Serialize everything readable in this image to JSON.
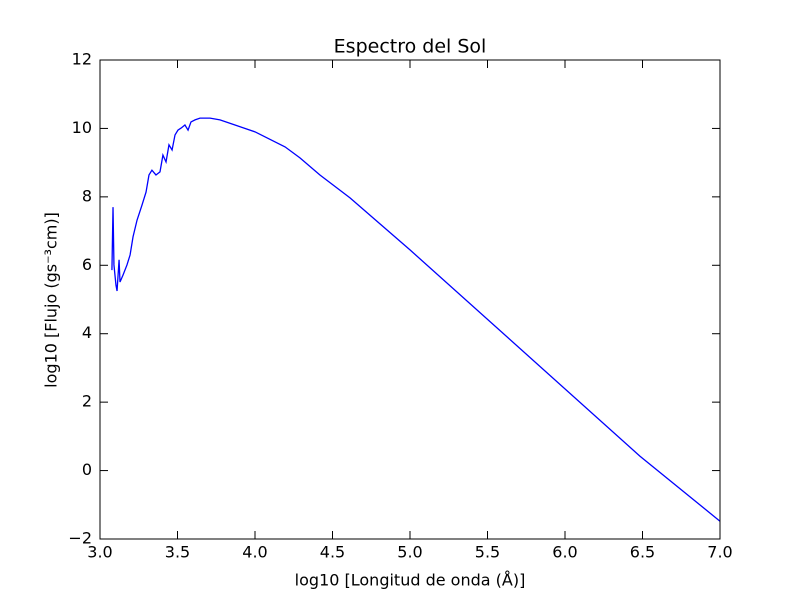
{
  "chart_data": {
    "type": "line",
    "title": "Espectro del Sol",
    "xlabel": "log10 [Longitud de onda (Å)]",
    "ylabel": "log10 [Flujo (gs⁻³cm)]",
    "x": [
      3.077,
      3.084,
      3.09,
      3.103,
      3.11,
      3.123,
      3.129,
      3.148,
      3.174,
      3.194,
      3.213,
      3.239,
      3.271,
      3.297,
      3.316,
      3.335,
      3.361,
      3.387,
      3.406,
      3.426,
      3.445,
      3.465,
      3.484,
      3.503,
      3.523,
      3.548,
      3.568,
      3.587,
      3.613,
      3.645,
      3.71,
      3.774,
      3.871,
      4.0,
      4.194,
      4.29,
      4.419,
      4.613,
      5.0,
      6.484,
      7.0
    ],
    "values": [
      5.86,
      7.7,
      6.01,
      5.42,
      5.25,
      6.16,
      5.51,
      5.71,
      6.01,
      6.3,
      6.83,
      7.32,
      7.76,
      8.14,
      8.64,
      8.78,
      8.64,
      8.73,
      9.22,
      9.02,
      9.52,
      9.37,
      9.81,
      9.95,
      10.01,
      10.1,
      9.95,
      10.19,
      10.25,
      10.3,
      10.3,
      10.25,
      10.1,
      9.9,
      9.46,
      9.14,
      8.64,
      7.97,
      6.45,
      0.42,
      -1.48
    ],
    "color": "#0000ff",
    "xlim": [
      3.0,
      7.0
    ],
    "xticks": [
      {
        "value": 3.0,
        "label": "3.0"
      },
      {
        "value": 3.5,
        "label": "3.5"
      },
      {
        "value": 4.0,
        "label": "4.0"
      },
      {
        "value": 4.5,
        "label": "4.5"
      },
      {
        "value": 5.0,
        "label": "5.0"
      },
      {
        "value": 5.5,
        "label": "5.5"
      },
      {
        "value": 6.0,
        "label": "6.0"
      },
      {
        "value": 6.5,
        "label": "6.5"
      },
      {
        "value": 7.0,
        "label": "7.0"
      }
    ],
    "ylim": [
      -2,
      12
    ],
    "yticks": [
      {
        "value": -2,
        "label": "−2"
      },
      0,
      2,
      4,
      6,
      8,
      10,
      12
    ],
    "grid": false
  }
}
